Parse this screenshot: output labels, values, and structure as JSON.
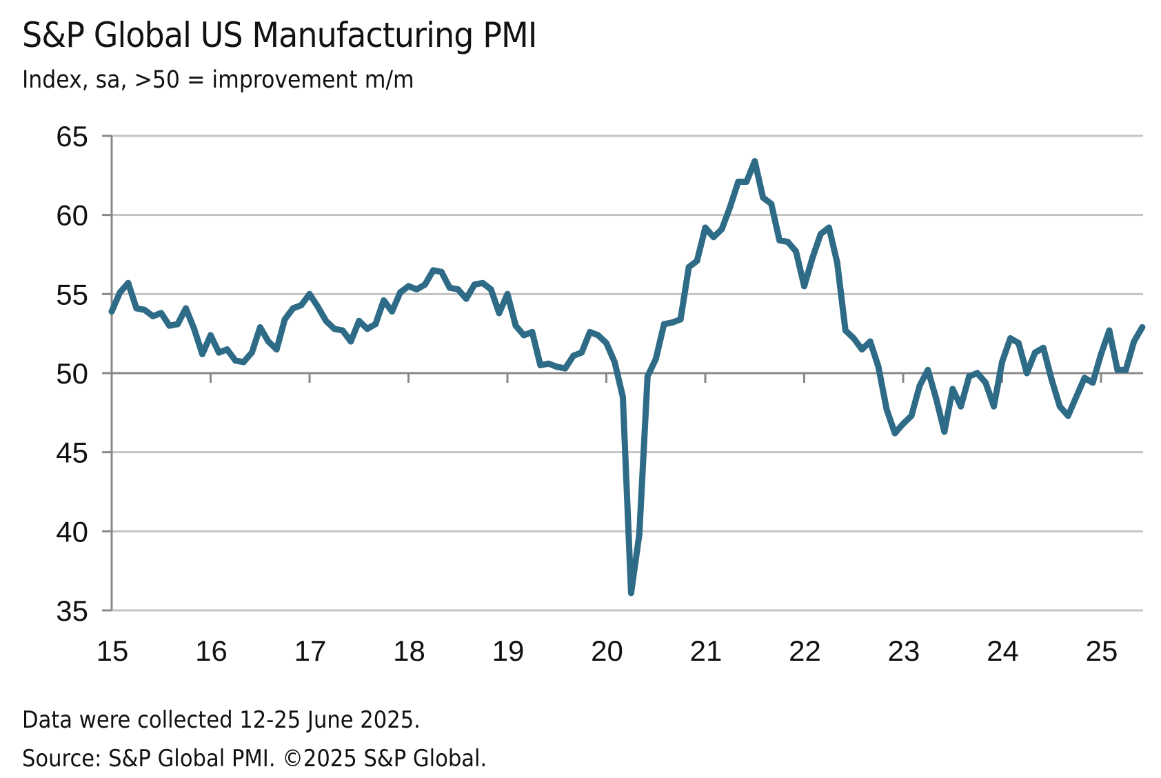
{
  "chart_data": {
    "type": "line",
    "title": "S&P Global US Manufacturing PMI",
    "subtitle": "Index, sa, >50 = improvement m/m",
    "xlabel": "",
    "ylabel": "",
    "ylim": [
      35,
      65
    ],
    "yticks": [
      35,
      40,
      45,
      50,
      55,
      60,
      65
    ],
    "xticks": [
      "15",
      "16",
      "17",
      "18",
      "19",
      "20",
      "21",
      "22",
      "23",
      "24",
      "25"
    ],
    "x_start": "2015-01",
    "frequency": "monthly",
    "grid": true,
    "line_color": "#2E6B87",
    "series": [
      {
        "name": "S&P Global US Manufacturing PMI",
        "values": [
          53.9,
          55.1,
          55.7,
          54.1,
          54.0,
          53.6,
          53.8,
          53.0,
          53.1,
          54.1,
          52.8,
          51.2,
          52.4,
          51.3,
          51.5,
          50.8,
          50.7,
          51.3,
          52.9,
          52.0,
          51.5,
          53.4,
          54.1,
          54.3,
          55.0,
          54.2,
          53.3,
          52.8,
          52.7,
          52.0,
          53.3,
          52.8,
          53.1,
          54.6,
          53.9,
          55.1,
          55.5,
          55.3,
          55.6,
          56.5,
          56.4,
          55.4,
          55.3,
          54.7,
          55.6,
          55.7,
          55.3,
          53.8,
          55.0,
          53.0,
          52.4,
          52.6,
          50.5,
          50.6,
          50.4,
          50.3,
          51.1,
          51.3,
          52.6,
          52.4,
          51.9,
          50.7,
          48.5,
          36.1,
          39.8,
          49.8,
          50.9,
          53.1,
          53.2,
          53.4,
          56.7,
          57.1,
          59.2,
          58.6,
          59.1,
          60.5,
          62.1,
          62.1,
          63.4,
          61.1,
          60.7,
          58.4,
          58.3,
          57.7,
          55.5,
          57.3,
          58.8,
          59.2,
          57.0,
          52.7,
          52.2,
          51.5,
          52.0,
          50.4,
          47.7,
          46.2,
          46.8,
          47.3,
          49.2,
          50.2,
          48.4,
          46.3,
          49.0,
          47.9,
          49.8,
          50.0,
          49.4,
          47.9,
          50.7,
          52.2,
          51.9,
          50.0,
          51.3,
          51.6,
          49.6,
          47.9,
          47.3,
          48.5,
          49.7,
          49.4,
          51.2,
          52.7,
          50.2,
          50.2,
          52.0,
          52.9
        ]
      }
    ]
  },
  "footer": {
    "note": "Data were collected 12-25 June 2025.",
    "source": "Source: S&P Global PMI. ©2025 S&P Global."
  }
}
